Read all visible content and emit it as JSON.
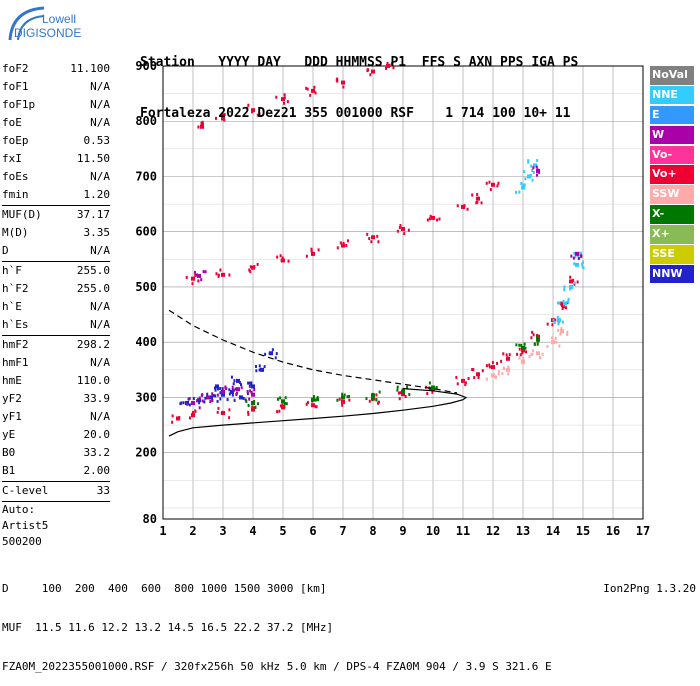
{
  "logo": {
    "line1": "Lowell",
    "line2": "DIGISONDE"
  },
  "header": {
    "line1": "Station   YYYY DAY   DDD HHMMSS P1  FFS S AXN PPS IGA PS",
    "line2": "Fortaleza 2022 Dez21 355 001000 RSF    1 714 100 10+ 11"
  },
  "params": {
    "group1": [
      {
        "name": "foF2",
        "value": "11.100"
      },
      {
        "name": "foF1",
        "value": "N/A"
      },
      {
        "name": "foF1p",
        "value": "N/A"
      },
      {
        "name": "foE",
        "value": "N/A"
      },
      {
        "name": "foEp",
        "value": "0.53"
      },
      {
        "name": "fxI",
        "value": "11.50"
      },
      {
        "name": "foEs",
        "value": "N/A"
      },
      {
        "name": "fmin",
        "value": "1.20"
      }
    ],
    "group2": [
      {
        "name": "MUF(D)",
        "value": "37.17"
      },
      {
        "name": "M(D)",
        "value": "3.35"
      },
      {
        "name": "D",
        "value": "N/A"
      }
    ],
    "group3": [
      {
        "name": "h`F",
        "value": "255.0"
      },
      {
        "name": "h`F2",
        "value": "255.0"
      },
      {
        "name": "h`E",
        "value": "N/A"
      },
      {
        "name": "h`Es",
        "value": "N/A"
      }
    ],
    "group4": [
      {
        "name": "hmF2",
        "value": "298.2"
      },
      {
        "name": "hmF1",
        "value": "N/A"
      },
      {
        "name": "hmE",
        "value": "110.0"
      },
      {
        "name": "yF2",
        "value": "33.9"
      },
      {
        "name": "yF1",
        "value": "N/A"
      },
      {
        "name": "yE",
        "value": "20.0"
      },
      {
        "name": "B0",
        "value": "33.2"
      },
      {
        "name": "B1",
        "value": "2.00"
      }
    ],
    "group5": [
      {
        "name": "C-level",
        "value": "33"
      }
    ],
    "auto": {
      "line1": "Auto:",
      "line2": "Artist5",
      "line3": "500200"
    }
  },
  "legend": [
    {
      "label": "NoVal",
      "color": "#808080"
    },
    {
      "label": "NNE",
      "color": "#33ccff"
    },
    {
      "label": "E",
      "color": "#3399ff"
    },
    {
      "label": "W",
      "color": "#aa00aa"
    },
    {
      "label": "Vo-",
      "color": "#ff3399"
    },
    {
      "label": "Vo+",
      "color": "#ee0033"
    },
    {
      "label": "SSW",
      "color": "#ffaaaa"
    },
    {
      "label": "X-",
      "color": "#007700"
    },
    {
      "label": "X+",
      "color": "#88bb55"
    },
    {
      "label": "SSE",
      "color": "#cccc00"
    },
    {
      "label": "NNW",
      "color": "#2222cc"
    }
  ],
  "footer": {
    "line1": "D     100  200  400  600  800 1000 1500 3000 [km]",
    "line2": "MUF  11.5 11.6 12.2 13.2 14.5 16.5 22.2 37.2 [MHz]",
    "line3": "FZA0M_2022355001000.RSF / 320fx256h 50 kHz 5.0 km / DPS-4 FZA0M 904 / 3.9 S 321.6 E",
    "version": "Ion2Png 1.3.20"
  },
  "chart_data": {
    "type": "scatter",
    "xlim": [
      1,
      17
    ],
    "ylim": [
      80,
      900
    ],
    "x_ticks": [
      1,
      2,
      3,
      4,
      5,
      6,
      7,
      8,
      9,
      10,
      11,
      12,
      13,
      14,
      15,
      16,
      17
    ],
    "y_ticks": [
      80,
      200,
      300,
      400,
      500,
      600,
      700,
      800,
      900
    ],
    "grid": true,
    "series": [
      {
        "name": "Vo+",
        "color": "#ee0033",
        "points": [
          [
            1.5,
            262
          ],
          [
            2,
            268
          ],
          [
            3,
            272
          ],
          [
            4,
            278
          ],
          [
            5,
            282
          ],
          [
            6,
            286
          ],
          [
            7,
            292
          ],
          [
            8,
            298
          ],
          [
            9,
            306
          ],
          [
            10,
            316
          ],
          [
            11,
            330
          ],
          [
            11.5,
            342
          ],
          [
            12,
            355
          ],
          [
            12.5,
            370
          ],
          [
            13,
            385
          ],
          [
            13.5,
            410
          ],
          [
            14,
            440
          ],
          [
            14.3,
            470
          ],
          [
            14.6,
            510
          ]
        ]
      },
      {
        "name": "Vo+ 2F",
        "color": "#ee0033",
        "points": [
          [
            2,
            515
          ],
          [
            3,
            522
          ],
          [
            4,
            535
          ],
          [
            5,
            548
          ],
          [
            6,
            560
          ],
          [
            7,
            575
          ],
          [
            8,
            590
          ],
          [
            9,
            605
          ],
          [
            10,
            625
          ],
          [
            11,
            645
          ],
          [
            11.5,
            660
          ],
          [
            12,
            685
          ]
        ]
      },
      {
        "name": "Vo+ 3F",
        "color": "#ee0033",
        "points": [
          [
            2.3,
            790
          ],
          [
            3,
            805
          ],
          [
            4,
            820
          ],
          [
            5,
            840
          ],
          [
            6,
            855
          ],
          [
            7,
            870
          ],
          [
            8,
            890
          ],
          [
            8.5,
            900
          ]
        ]
      },
      {
        "name": "NNE",
        "color": "#33ccff",
        "points": [
          [
            14.2,
            440
          ],
          [
            14.4,
            470
          ],
          [
            14.6,
            500
          ],
          [
            14.8,
            540
          ],
          [
            14.9,
            560
          ],
          [
            13,
            680
          ],
          [
            13.2,
            700
          ],
          [
            13.4,
            720
          ]
        ]
      },
      {
        "name": "NNW",
        "color": "#2222cc",
        "points": [
          [
            1.8,
            290
          ],
          [
            2.2,
            295
          ],
          [
            2.6,
            300
          ],
          [
            3,
            305
          ],
          [
            3.3,
            310
          ],
          [
            3.6,
            300
          ],
          [
            4,
            320
          ],
          [
            4.3,
            350
          ],
          [
            4.6,
            380
          ],
          [
            3.5,
            330
          ],
          [
            2.8,
            320
          ]
        ]
      },
      {
        "name": "W",
        "color": "#aa00aa",
        "points": [
          [
            2,
            290
          ],
          [
            2.5,
            300
          ],
          [
            3,
            310
          ],
          [
            3.5,
            315
          ],
          [
            4,
            305
          ],
          [
            2.2,
            520
          ],
          [
            13.5,
            710
          ],
          [
            14.8,
            560
          ]
        ]
      },
      {
        "name": "X-",
        "color": "#007700",
        "points": [
          [
            4,
            290
          ],
          [
            5,
            293
          ],
          [
            6,
            296
          ],
          [
            7,
            300
          ],
          [
            8,
            304
          ],
          [
            9,
            310
          ],
          [
            10,
            318
          ],
          [
            13,
            390
          ],
          [
            13.5,
            405
          ]
        ]
      },
      {
        "name": "SSW",
        "color": "#ffaaaa",
        "points": [
          [
            12,
            340
          ],
          [
            12.5,
            350
          ],
          [
            13,
            365
          ],
          [
            13.5,
            380
          ],
          [
            14,
            400
          ],
          [
            14.3,
            420
          ]
        ]
      }
    ],
    "lines": [
      {
        "name": "profile",
        "style": "solid",
        "points": [
          [
            1.2,
            230
          ],
          [
            1.5,
            238
          ],
          [
            2,
            245
          ],
          [
            3,
            250
          ],
          [
            4,
            254
          ],
          [
            5,
            258
          ],
          [
            6,
            262
          ],
          [
            7,
            266
          ],
          [
            8,
            271
          ],
          [
            9,
            277
          ],
          [
            10,
            284
          ],
          [
            10.6,
            290
          ],
          [
            11,
            296
          ],
          [
            11.1,
            300
          ],
          [
            10.8,
            306
          ],
          [
            10,
            312
          ],
          [
            9,
            316
          ]
        ]
      },
      {
        "name": "model",
        "style": "dashed",
        "points": [
          [
            1.2,
            458
          ],
          [
            2,
            430
          ],
          [
            3,
            404
          ],
          [
            4,
            382
          ],
          [
            5,
            364
          ],
          [
            6,
            350
          ],
          [
            7,
            340
          ],
          [
            8,
            332
          ],
          [
            9,
            324
          ],
          [
            10,
            316
          ],
          [
            10.8,
            308
          ]
        ]
      }
    ]
  }
}
